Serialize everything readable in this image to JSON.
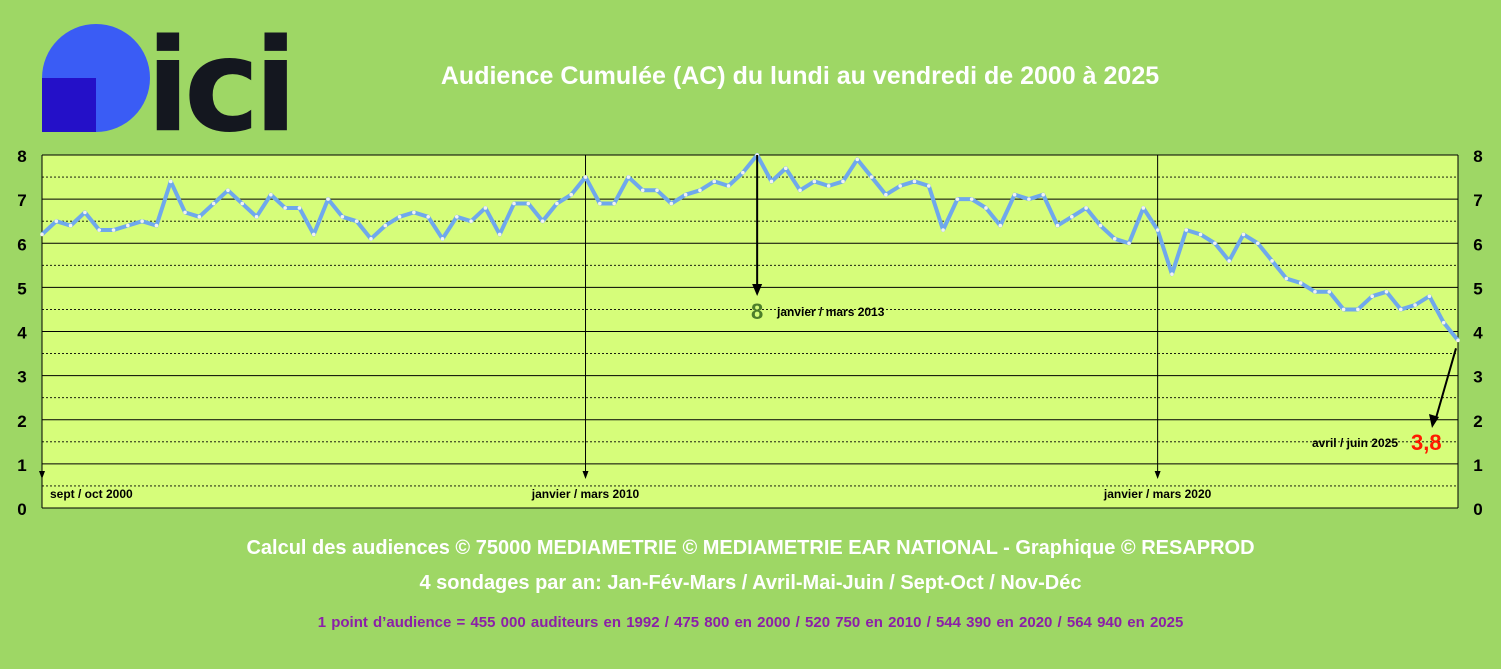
{
  "logo": {
    "text": "ici",
    "colors": {
      "circle": "#3a5cf5",
      "square": "#2410c8",
      "text": "#14171f"
    }
  },
  "title": "Audience Cumulée (AC) du lundi au vendredi de 2000 à 2025",
  "chart_data": {
    "type": "line",
    "title": "Audience Cumulée (AC) du lundi au vendredi de 2000 à 2025",
    "xlabel": "",
    "ylabel": "",
    "ylim": [
      0,
      8
    ],
    "yticks": [
      0,
      1,
      2,
      3,
      4,
      5,
      6,
      7,
      8
    ],
    "grid": true,
    "colors": {
      "line": "#6fa8ec",
      "marker": "#f2f2f2",
      "plot_bg": "#d6fd7a",
      "max_label": "#4c7e2a",
      "last_label": "#ff1a00"
    },
    "series": [
      {
        "values": [
          6.2,
          6.5,
          6.4,
          6.7,
          6.3,
          6.3,
          6.4,
          6.5,
          6.4,
          7.4,
          6.7,
          6.6,
          6.9,
          7.2,
          6.9,
          6.6,
          7.1,
          6.8,
          6.8,
          6.2,
          7.0,
          6.6,
          6.5,
          6.1,
          6.4,
          6.6,
          6.7,
          6.6,
          6.1,
          6.6,
          6.5,
          6.8,
          6.2,
          6.9,
          6.9,
          6.5,
          6.9,
          7.1,
          7.5,
          6.9,
          6.9,
          7.5,
          7.2,
          7.2,
          6.9,
          7.1,
          7.2,
          7.4,
          7.3,
          7.6,
          8.0,
          7.4,
          7.7,
          7.2,
          7.4,
          7.3,
          7.4,
          7.9,
          7.5,
          7.1,
          7.3,
          7.4,
          7.3,
          6.3,
          7.0,
          7.0,
          6.8,
          6.4,
          7.1,
          7.0,
          7.1,
          6.4,
          6.6,
          6.8,
          6.4,
          6.1,
          6.0,
          6.8,
          6.3,
          5.3,
          6.3,
          6.2,
          6.0,
          5.6,
          6.2,
          6.0,
          5.6,
          5.2,
          5.1,
          4.9,
          4.9,
          4.5,
          4.5,
          4.8,
          4.9,
          4.5,
          4.6,
          4.8,
          4.2,
          3.8
        ]
      }
    ],
    "period_markers": [
      {
        "index": 0,
        "label": "sept / oct 2000"
      },
      {
        "index": 38,
        "label": "janvier / mars 2010"
      },
      {
        "index": 78,
        "label": "janvier / mars 2020"
      }
    ],
    "annotations": [
      {
        "index": 50,
        "value_label": "8",
        "period": "janvier / mars 2013"
      },
      {
        "index": 99,
        "value_label": "3,8",
        "period": "avril / juin 2025"
      }
    ]
  },
  "footer": {
    "credits": "Calcul des audiences © 75000 MEDIAMETRIE © MEDIAMETRIE EAR NATIONAL - Graphique © RESAPROD",
    "surveys": "4 sondages par an: Jan-Fév-Mars / Avril-Mai-Juin / Sept-Oct / Nov-Déc",
    "points": "1 point d’audience = 455 000 auditeurs en 1992   /   475 800 en 2000   /   520 750 en 2010   /   544 390 en 2020   /   564 940 en 2025"
  }
}
